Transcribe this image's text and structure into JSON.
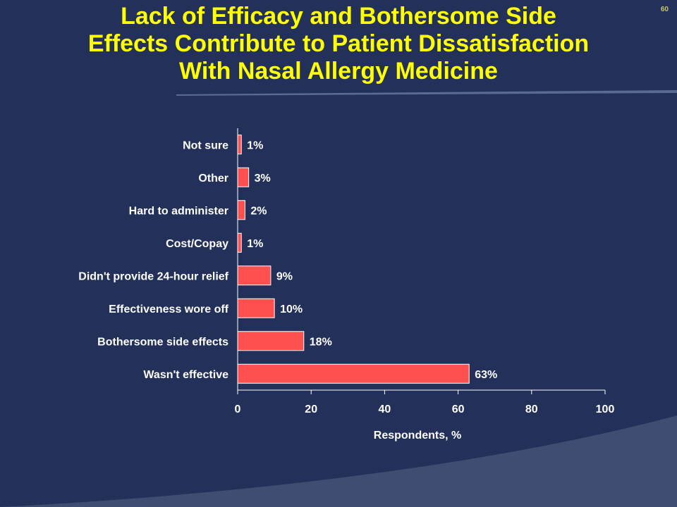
{
  "slide": {
    "title_lines": [
      "Lack of Efficacy and Bothersome Side",
      "Effects Contribute to Patient Dissatisfaction",
      "With Nasal Allergy Medicine"
    ],
    "number": "60"
  },
  "colors": {
    "background": "#22305a",
    "title": "#ffff00",
    "bar": "#ff5050",
    "text": "#ffffff",
    "accent_band": "#3f4d72"
  },
  "chart_data": {
    "type": "bar",
    "orientation": "horizontal",
    "categories": [
      "Not sure",
      "Other",
      "Hard to administer",
      "Cost/Copay",
      "Didn't provide 24-hour relief",
      "Effectiveness wore off",
      "Bothersome side effects",
      "Wasn't effective"
    ],
    "values": [
      1,
      3,
      2,
      1,
      9,
      10,
      18,
      63
    ],
    "value_labels": [
      "1%",
      "3%",
      "2%",
      "1%",
      "9%",
      "10%",
      "18%",
      "63%"
    ],
    "xlabel": "Respondents, %",
    "xlim": [
      0,
      100
    ],
    "xticks": [
      0,
      20,
      40,
      60,
      80,
      100
    ],
    "grid": false,
    "legend": "none"
  }
}
